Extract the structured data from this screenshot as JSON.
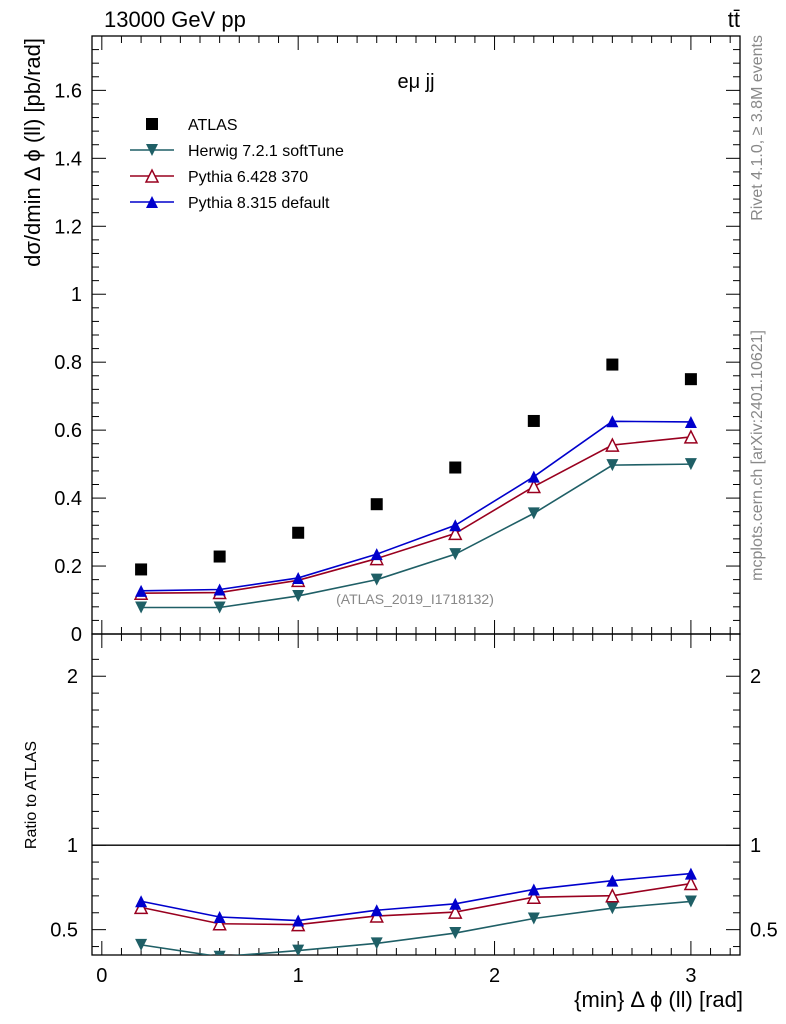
{
  "header": {
    "energy_label": "13000 GeV pp",
    "process_label": "tt̄"
  },
  "side_labels": {
    "rivet": "Rivet 4.1.0, ≥ 3.8M events",
    "mcplots": "mcplots.cern.ch [arXiv:2401.10621]"
  },
  "chart_data": {
    "type": "scatter",
    "title": "eμ jj",
    "analysis_label": "(ATLAS_2019_I1718132)",
    "xlabel": "{min} Δ ϕ (ll) [rad]",
    "ylabel": "dσ/dmin Δ ϕ (ll) [pb/rad]",
    "ratio_ylabel": "Ratio to ATLAS",
    "xlim": [
      -0.05,
      3.25
    ],
    "ylim": [
      0,
      1.76
    ],
    "ratio_ylim": [
      0.35,
      2.25
    ],
    "x_ticks": [
      "0",
      "1",
      "2",
      "3"
    ],
    "y_ticks": [
      "0",
      "0.2",
      "0.4",
      "0.6",
      "0.8",
      "1",
      "1.2",
      "1.4",
      "1.6"
    ],
    "ratio_ticks": [
      "0.5",
      "1",
      "2"
    ],
    "x": [
      0.2,
      0.6,
      1.0,
      1.4,
      1.8,
      2.2,
      2.6,
      3.0
    ],
    "series": [
      {
        "name": "ATLAS",
        "marker": "square",
        "color": "#000000",
        "line": false,
        "values": [
          0.19,
          0.228,
          0.298,
          0.382,
          0.49,
          0.627,
          0.793,
          0.75
        ]
      },
      {
        "name": "Herwig 7.2.1 softTune",
        "marker": "triangle-down",
        "color": "#1f5f66",
        "line": true,
        "values": [
          0.078,
          0.078,
          0.112,
          0.16,
          0.235,
          0.355,
          0.497,
          0.5
        ],
        "ratio": [
          0.41,
          0.34,
          0.376,
          0.419,
          0.48,
          0.566,
          0.627,
          0.667
        ]
      },
      {
        "name": "Pythia 6.428 370",
        "marker": "triangle-open",
        "color": "#99001f",
        "line": true,
        "values": [
          0.12,
          0.122,
          0.158,
          0.222,
          0.296,
          0.434,
          0.556,
          0.58
        ],
        "ratio": [
          0.632,
          0.535,
          0.53,
          0.581,
          0.604,
          0.692,
          0.701,
          0.773
        ]
      },
      {
        "name": "Pythia 8.315 default",
        "marker": "triangle-up",
        "color": "#0000cc",
        "line": true,
        "values": [
          0.127,
          0.131,
          0.165,
          0.235,
          0.32,
          0.463,
          0.626,
          0.624
        ],
        "ratio": [
          0.668,
          0.575,
          0.554,
          0.615,
          0.653,
          0.738,
          0.79,
          0.832
        ]
      }
    ]
  }
}
